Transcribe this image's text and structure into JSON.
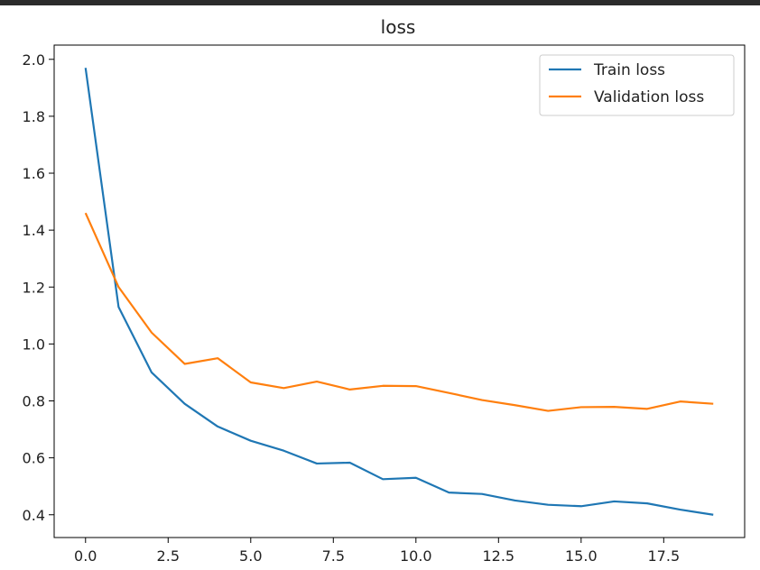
{
  "chart_data": {
    "type": "line",
    "title": "loss",
    "xlabel": "",
    "ylabel": "",
    "xlim": [
      -0.95,
      19.95
    ],
    "ylim": [
      0.32,
      2.05
    ],
    "x_ticks": [
      "0.0",
      "2.5",
      "5.0",
      "7.5",
      "10.0",
      "12.5",
      "15.0",
      "17.5"
    ],
    "x_tick_values": [
      0,
      2.5,
      5,
      7.5,
      10,
      12.5,
      15,
      17.5
    ],
    "y_ticks": [
      "0.4",
      "0.6",
      "0.8",
      "1.0",
      "1.2",
      "1.4",
      "1.6",
      "1.8",
      "2.0"
    ],
    "y_tick_values": [
      0.4,
      0.6,
      0.8,
      1.0,
      1.2,
      1.4,
      1.6,
      1.8,
      2.0
    ],
    "x": [
      0,
      1,
      2,
      3,
      4,
      5,
      6,
      7,
      8,
      9,
      10,
      11,
      12,
      13,
      14,
      15,
      16,
      17,
      18,
      19
    ],
    "series": [
      {
        "name": "Train loss",
        "color": "#1f77b4",
        "values": [
          1.97,
          1.13,
          0.9,
          0.79,
          0.71,
          0.66,
          0.625,
          0.58,
          0.583,
          0.525,
          0.53,
          0.478,
          0.473,
          0.45,
          0.435,
          0.43,
          0.447,
          0.44,
          0.418,
          0.4
        ]
      },
      {
        "name": "Validation loss",
        "color": "#ff7f0e",
        "values": [
          1.46,
          1.2,
          1.04,
          0.93,
          0.95,
          0.865,
          0.845,
          0.868,
          0.84,
          0.853,
          0.852,
          0.828,
          0.803,
          0.785,
          0.765,
          0.778,
          0.779,
          0.772,
          0.798,
          0.79
        ]
      }
    ],
    "legend": {
      "placement": "top-right",
      "entries": [
        "Train loss",
        "Validation loss"
      ]
    },
    "grid": false
  }
}
